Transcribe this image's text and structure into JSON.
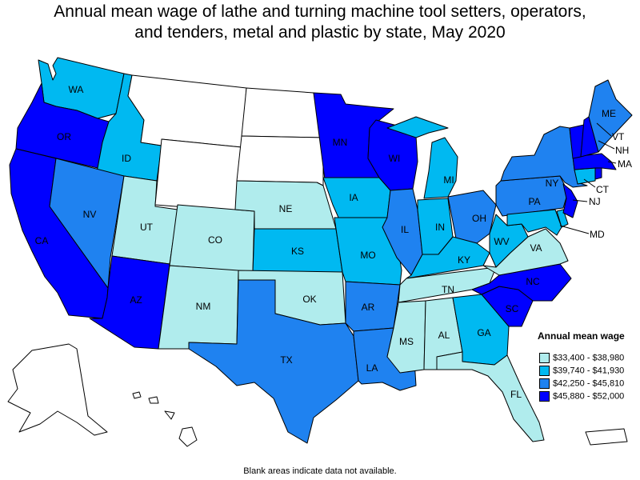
{
  "title": {
    "line1": "Annual mean wage of lathe and turning machine tool setters, operators,",
    "line2": "and tenders, metal and plastic by state, May 2020"
  },
  "legend": {
    "title": "Annual mean wage",
    "items": [
      {
        "label": "$33,400 - $38,980",
        "color": "#b0eced"
      },
      {
        "label": "$39,740 - $41,930",
        "color": "#00b9f1"
      },
      {
        "label": "$42,250 - $45,810",
        "color": "#1f82f0"
      },
      {
        "label": "$45,880 - $52,000",
        "color": "#0000ff"
      }
    ],
    "no_data_color": "#ffffff"
  },
  "footnote": "Blank areas indicate data not available.",
  "states": {
    "WA": 1,
    "OR": 3,
    "CA": 3,
    "ID": 1,
    "NV": 2,
    "UT": 0,
    "AZ": 3,
    "MT": null,
    "WY": null,
    "CO": 0,
    "NM": 0,
    "ND": null,
    "SD": null,
    "NE": 0,
    "KS": 1,
    "OK": 0,
    "TX": 2,
    "MN": 3,
    "IA": 1,
    "MO": 1,
    "AR": 2,
    "LA": 2,
    "WI": 3,
    "IL": 2,
    "MS": 0,
    "MI": 1,
    "IN": 1,
    "KY": 1,
    "TN": 0,
    "AL": 0,
    "OH": 2,
    "WV": 1,
    "GA": 1,
    "FL": 0,
    "SC": 3,
    "NC": 3,
    "VA": 0,
    "PA": 2,
    "NY": 2,
    "MD": 1,
    "NJ": 3,
    "CT": 1,
    "MA": 3,
    "VT": 3,
    "NH": 3,
    "ME": 2,
    "RI": 3,
    "DE": 1,
    "AK": null,
    "HI": null,
    "PR": null
  }
}
